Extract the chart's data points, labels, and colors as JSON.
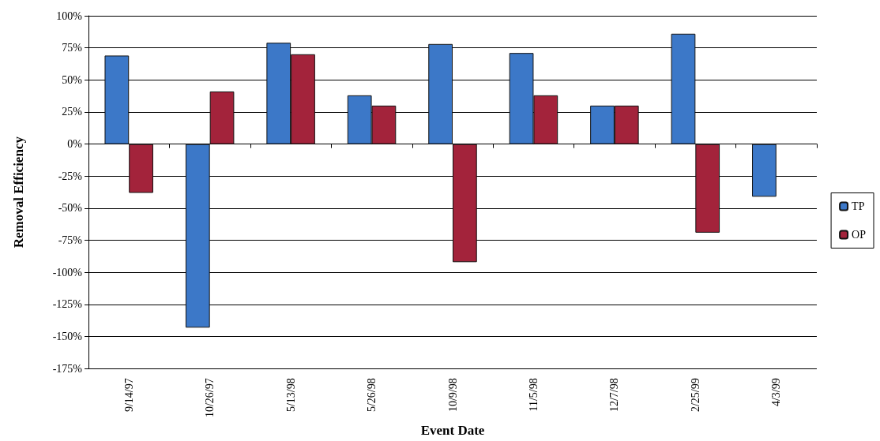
{
  "chart_data": {
    "type": "bar",
    "xlabel": "Event Date",
    "ylabel": "Removal Efficiency",
    "categories": [
      "9/14/97",
      "10/26/97",
      "5/13/98",
      "5/26/98",
      "10/9/98",
      "11/5/98",
      "12/7/98",
      "2/25/99",
      "4/3/99"
    ],
    "series": [
      {
        "name": "TP",
        "color": "#3c78c8",
        "values": [
          69,
          -143,
          79,
          38,
          78,
          71,
          30,
          86,
          -41
        ]
      },
      {
        "name": "OP",
        "color": "#a3233b",
        "values": [
          -38,
          41,
          70,
          30,
          -92,
          38,
          30,
          -69,
          null
        ]
      }
    ],
    "ylim": [
      -175,
      100
    ],
    "yticks": [
      {
        "value": -175,
        "label": "-175%"
      },
      {
        "value": -150,
        "label": "-150%"
      },
      {
        "value": -125,
        "label": "-125%"
      },
      {
        "value": -100,
        "label": "-100%"
      },
      {
        "value": -75,
        "label": "-75%"
      },
      {
        "value": -50,
        "label": "-50%"
      },
      {
        "value": -25,
        "label": "-25%"
      },
      {
        "value": 0,
        "label": "0%"
      },
      {
        "value": 25,
        "label": "25%"
      },
      {
        "value": 50,
        "label": "50%"
      },
      {
        "value": 75,
        "label": "75%"
      },
      {
        "value": 100,
        "label": "100%"
      }
    ],
    "grid": "y",
    "legend": "right"
  }
}
